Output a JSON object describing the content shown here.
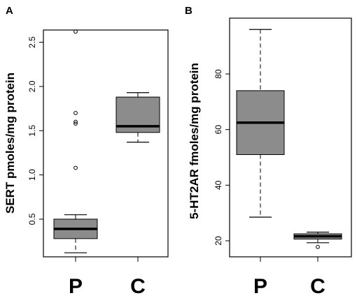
{
  "chart_data": [
    {
      "type": "box",
      "panel_label": "A",
      "ylabel": "SERT pmoles/mg protein",
      "categories": [
        "P",
        "C"
      ],
      "yticks": [
        "0.5",
        "1.0",
        "1.5",
        "2.0",
        "2.5"
      ],
      "ylim": [
        0.05,
        2.75
      ],
      "box_color": "#8c8c8c",
      "boxes": [
        {
          "category": "P",
          "whisker_low": 0.12,
          "q1": 0.28,
          "median": 0.39,
          "q3": 0.5,
          "whisker_high": 0.55,
          "outliers": [
            1.08,
            1.58,
            1.6,
            1.7,
            2.62
          ]
        },
        {
          "category": "C",
          "whisker_low": 1.37,
          "q1": 1.48,
          "median": 1.55,
          "q3": 1.88,
          "whisker_high": 1.93,
          "outliers": []
        }
      ]
    },
    {
      "type": "box",
      "panel_label": "B",
      "ylabel": "5-HT2AR  fmoles/mg protein",
      "categories": [
        "P",
        "C"
      ],
      "yticks": [
        "20",
        "40",
        "60",
        "80"
      ],
      "ylim": [
        15,
        101
      ],
      "box_color": "#8c8c8c",
      "boxes": [
        {
          "category": "P",
          "whisker_low": 28.5,
          "q1": 51,
          "median": 62.5,
          "q3": 74,
          "whisker_high": 96,
          "outliers": []
        },
        {
          "category": "C",
          "whisker_low": 19.3,
          "q1": 20.6,
          "median": 21.6,
          "q3": 22.5,
          "whisker_high": 23.1,
          "outliers": [
            17.8
          ]
        }
      ]
    }
  ]
}
